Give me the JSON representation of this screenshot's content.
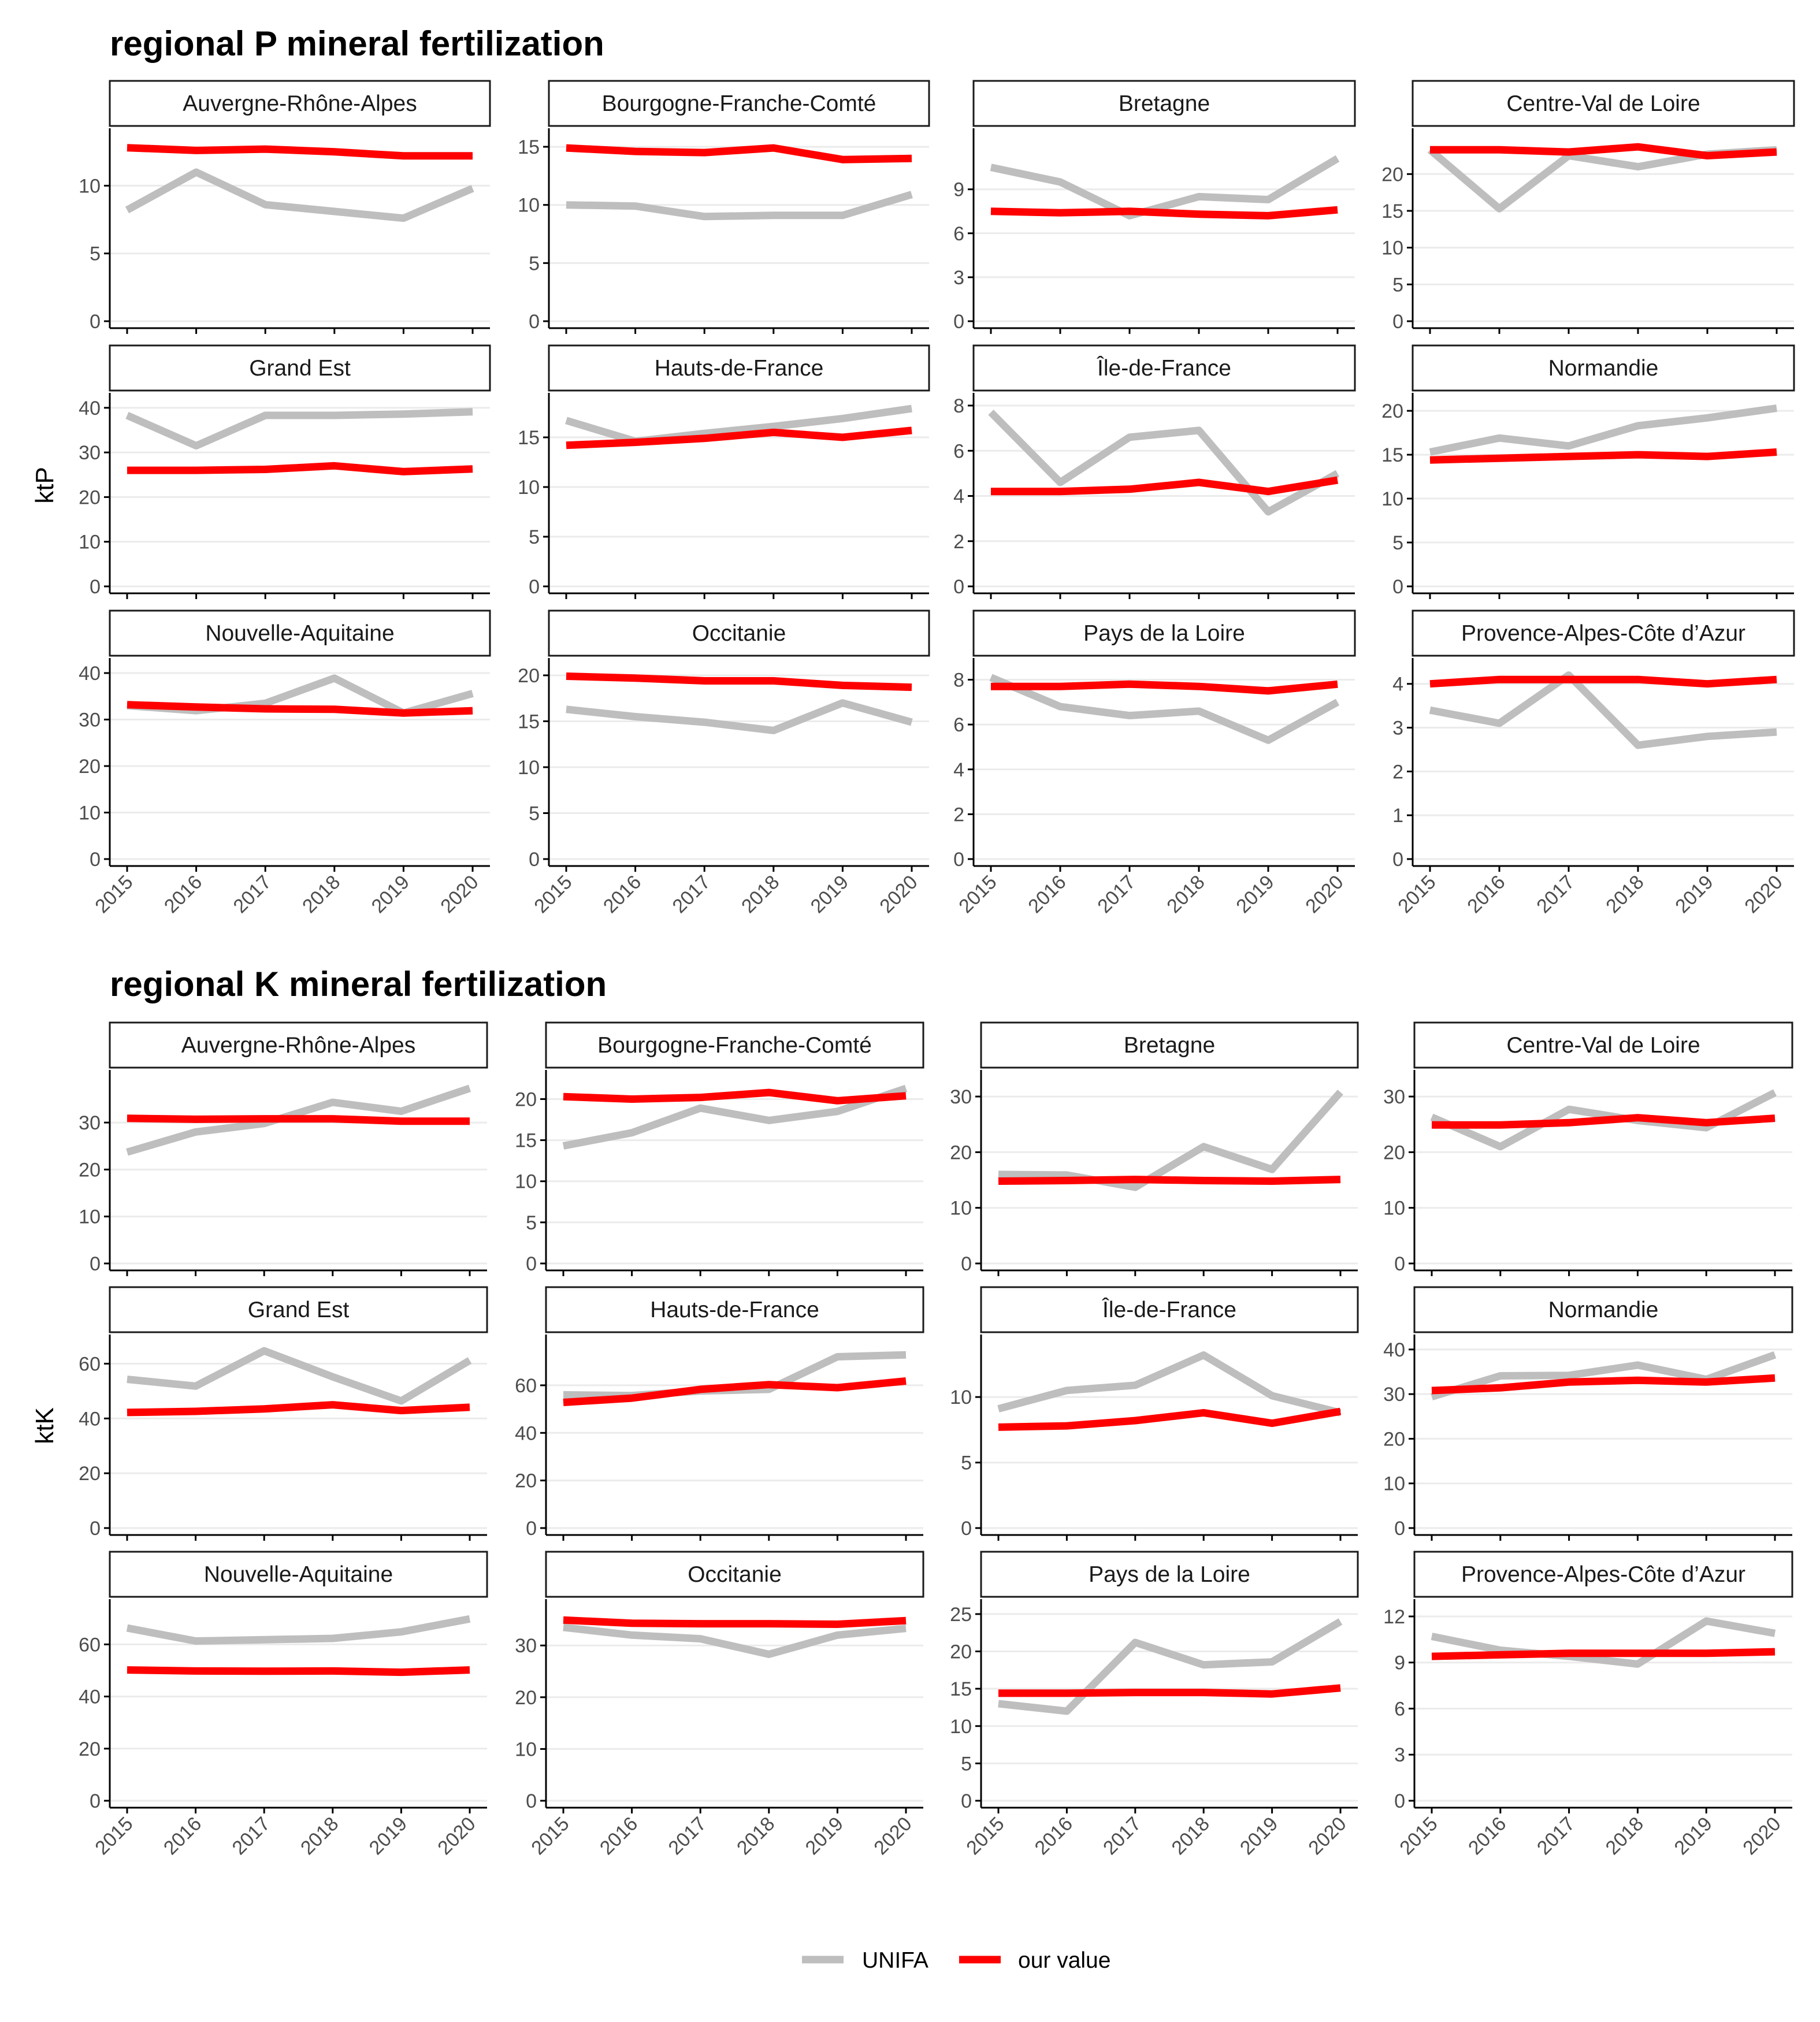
{
  "legend": {
    "unifa": "UNIFA",
    "ours": "our value"
  },
  "colors": {
    "unifa": "#bebebe",
    "ours": "#ff0000",
    "grid": "#ebebeb",
    "axis": "#000000"
  },
  "chart_data": [
    {
      "type": "line",
      "title": "regional P mineral fertilization",
      "ylabel": "ktP",
      "xlabel": "",
      "x": [
        2015,
        2016,
        2017,
        2018,
        2019,
        2020
      ],
      "series_names": [
        "UNIFA",
        "our value"
      ],
      "facets": [
        {
          "name": "Auvergne-Rhône-Alpes",
          "ylim": [
            0,
            13.3
          ],
          "yticks": [
            0,
            5,
            10
          ],
          "unifa": [
            8.2,
            11.0,
            8.6,
            8.1,
            7.6,
            9.8
          ],
          "ours": [
            12.8,
            12.6,
            12.7,
            12.5,
            12.2,
            12.2
          ]
        },
        {
          "name": "Bourgogne-Franche-Comté",
          "ylim": [
            0,
            15.5
          ],
          "yticks": [
            0,
            5,
            10,
            15
          ],
          "unifa": [
            10.0,
            9.9,
            9.0,
            9.1,
            9.1,
            10.9
          ],
          "ours": [
            14.9,
            14.6,
            14.5,
            14.9,
            13.9,
            14.0
          ]
        },
        {
          "name": "Bretagne",
          "ylim": [
            0,
            12.3
          ],
          "yticks": [
            0,
            3,
            6,
            9
          ],
          "unifa": [
            10.5,
            9.5,
            7.2,
            8.5,
            8.3,
            11.1
          ],
          "ours": [
            7.5,
            7.4,
            7.5,
            7.3,
            7.2,
            7.6
          ]
        },
        {
          "name": "Centre-Val de Loire",
          "ylim": [
            0,
            24.5
          ],
          "yticks": [
            0,
            5,
            10,
            15,
            20
          ],
          "unifa": [
            23.3,
            15.3,
            22.5,
            21.0,
            22.7,
            23.3
          ],
          "ours": [
            23.3,
            23.3,
            23.0,
            23.7,
            22.5,
            23.0
          ]
        },
        {
          "name": "Grand Est",
          "ylim": [
            0,
            40.5
          ],
          "yticks": [
            0,
            10,
            20,
            30,
            40
          ],
          "unifa": [
            38.3,
            31.5,
            38.3,
            38.3,
            38.6,
            39.1
          ],
          "ours": [
            26.0,
            26.0,
            26.2,
            27.0,
            25.7,
            26.3
          ]
        },
        {
          "name": "Hauts-de-France",
          "ylim": [
            0,
            18.2
          ],
          "yticks": [
            0,
            5,
            10,
            15
          ],
          "unifa": [
            16.7,
            14.6,
            15.4,
            16.1,
            16.9,
            17.9
          ],
          "ours": [
            14.2,
            14.5,
            14.9,
            15.5,
            15.0,
            15.7
          ]
        },
        {
          "name": "Île-de-France",
          "ylim": [
            0,
            8.0
          ],
          "yticks": [
            0,
            2,
            4,
            6,
            8
          ],
          "unifa": [
            7.7,
            4.6,
            6.6,
            6.9,
            3.3,
            5.0
          ],
          "ours": [
            4.2,
            4.2,
            4.3,
            4.6,
            4.2,
            4.7
          ]
        },
        {
          "name": "Normandie",
          "ylim": [
            0,
            20.6
          ],
          "yticks": [
            0,
            5,
            10,
            15,
            20
          ],
          "unifa": [
            15.3,
            16.9,
            16.0,
            18.3,
            19.2,
            20.3
          ],
          "ours": [
            14.4,
            14.6,
            14.8,
            15.0,
            14.8,
            15.3
          ]
        },
        {
          "name": "Nouvelle-Aquitaine",
          "ylim": [
            0,
            40.5
          ],
          "yticks": [
            0,
            10,
            20,
            30,
            40
          ],
          "unifa": [
            33.0,
            31.9,
            33.5,
            38.9,
            31.4,
            35.6
          ],
          "ours": [
            33.2,
            32.7,
            32.3,
            32.2,
            31.4,
            31.9
          ]
        },
        {
          "name": "Occitanie",
          "ylim": [
            0,
            20.5
          ],
          "yticks": [
            0,
            5,
            10,
            15,
            20
          ],
          "unifa": [
            16.3,
            15.5,
            14.9,
            14.0,
            17.0,
            14.9
          ],
          "ours": [
            19.9,
            19.7,
            19.4,
            19.4,
            18.9,
            18.7
          ]
        },
        {
          "name": "Pays de la Loire",
          "ylim": [
            0,
            8.4
          ],
          "yticks": [
            0,
            2,
            4,
            6,
            8
          ],
          "unifa": [
            8.1,
            6.8,
            6.4,
            6.6,
            5.3,
            7.0
          ],
          "ours": [
            7.7,
            7.7,
            7.8,
            7.7,
            7.5,
            7.8
          ]
        },
        {
          "name": "Provence-Alpes-Côte d’Azur",
          "ylim": [
            0,
            4.3
          ],
          "yticks": [
            0,
            1,
            2,
            3,
            4
          ],
          "unifa": [
            3.4,
            3.1,
            4.2,
            2.6,
            2.8,
            2.9
          ],
          "ours": [
            4.0,
            4.1,
            4.1,
            4.1,
            4.0,
            4.1
          ]
        }
      ]
    },
    {
      "type": "line",
      "title": "regional K mineral fertilization",
      "ylabel": "ktK",
      "xlabel": "",
      "x": [
        2015,
        2016,
        2017,
        2018,
        2019,
        2020
      ],
      "series_names": [
        "UNIFA",
        "our value"
      ],
      "facets": [
        {
          "name": "Auvergne-Rhône-Alpes",
          "ylim": [
            0,
            38.5
          ],
          "yticks": [
            0,
            10,
            20,
            30
          ],
          "unifa": [
            23.7,
            28.0,
            29.8,
            34.3,
            32.4,
            37.3
          ],
          "ours": [
            30.9,
            30.7,
            30.8,
            30.8,
            30.3,
            30.3
          ]
        },
        {
          "name": "Bourgogne-Franche-Comté",
          "ylim": [
            0,
            22.0
          ],
          "yticks": [
            0,
            5,
            10,
            15,
            20
          ],
          "unifa": [
            14.3,
            15.9,
            18.9,
            17.4,
            18.5,
            21.3
          ],
          "ours": [
            20.3,
            20.0,
            20.2,
            20.8,
            19.8,
            20.4
          ]
        },
        {
          "name": "Bretagne",
          "ylim": [
            0,
            32.5
          ],
          "yticks": [
            0,
            10,
            20,
            30
          ],
          "unifa": [
            16.0,
            15.9,
            13.7,
            21.0,
            16.9,
            30.8
          ],
          "ours": [
            14.8,
            14.9,
            15.1,
            14.9,
            14.8,
            15.1
          ]
        },
        {
          "name": "Centre-Val de Loire",
          "ylim": [
            0,
            32.5
          ],
          "yticks": [
            0,
            10,
            20,
            30
          ],
          "unifa": [
            26.3,
            21.0,
            27.7,
            25.7,
            24.4,
            30.7
          ],
          "ours": [
            24.9,
            24.9,
            25.3,
            26.2,
            25.3,
            26.1
          ]
        },
        {
          "name": "Grand Est",
          "ylim": [
            0,
            66.0
          ],
          "yticks": [
            0,
            20,
            40,
            60
          ],
          "unifa": [
            54.3,
            51.8,
            64.7,
            55.2,
            46.4,
            61.2
          ],
          "ours": [
            42.2,
            42.6,
            43.5,
            45.0,
            42.9,
            44.1
          ]
        },
        {
          "name": "Hauts-de-France",
          "ylim": [
            0,
            76.0
          ],
          "yticks": [
            0,
            20,
            40,
            60
          ],
          "unifa": [
            56.0,
            55.7,
            57.6,
            58.3,
            72.0,
            72.8
          ],
          "ours": [
            52.8,
            54.6,
            58.3,
            60.3,
            59.0,
            61.8
          ]
        },
        {
          "name": "Île-de-France",
          "ylim": [
            0,
            13.8
          ],
          "yticks": [
            0,
            5,
            10
          ],
          "unifa": [
            9.1,
            10.5,
            10.9,
            13.2,
            10.1,
            8.8
          ],
          "ours": [
            7.7,
            7.8,
            8.2,
            8.8,
            8.0,
            8.9
          ]
        },
        {
          "name": "Normandie",
          "ylim": [
            0,
            40.5
          ],
          "yticks": [
            0,
            10,
            20,
            30,
            40
          ],
          "unifa": [
            29.4,
            34.1,
            34.2,
            36.5,
            33.3,
            38.8
          ],
          "ours": [
            30.8,
            31.4,
            32.7,
            33.1,
            32.7,
            33.6
          ]
        },
        {
          "name": "Nouvelle-Aquitaine",
          "ylim": [
            0,
            72.5
          ],
          "yticks": [
            0,
            20,
            40,
            60
          ],
          "unifa": [
            66.3,
            61.3,
            61.8,
            62.3,
            64.8,
            69.8
          ],
          "ours": [
            50.2,
            49.8,
            49.7,
            49.8,
            49.3,
            50.2
          ]
        },
        {
          "name": "Occitanie",
          "ylim": [
            0,
            36.5
          ],
          "yticks": [
            0,
            10,
            20,
            30
          ],
          "unifa": [
            33.5,
            32.0,
            31.3,
            28.3,
            32.0,
            33.3
          ],
          "ours": [
            34.9,
            34.3,
            34.2,
            34.2,
            34.1,
            34.8
          ]
        },
        {
          "name": "Pays de la Loire",
          "ylim": [
            0,
            25.3
          ],
          "yticks": [
            0,
            5,
            10,
            15,
            20,
            25
          ],
          "unifa": [
            13.0,
            12.0,
            21.2,
            18.2,
            18.6,
            24.0
          ],
          "ours": [
            14.4,
            14.4,
            14.5,
            14.5,
            14.3,
            15.1
          ]
        },
        {
          "name": "Provence-Alpes-Côte d’Azur",
          "ylim": [
            0,
            12.3
          ],
          "yticks": [
            0,
            3,
            6,
            9,
            12
          ],
          "unifa": [
            10.7,
            9.8,
            9.4,
            8.9,
            11.7,
            10.9
          ],
          "ours": [
            9.4,
            9.5,
            9.6,
            9.6,
            9.6,
            9.7
          ]
        }
      ]
    }
  ]
}
